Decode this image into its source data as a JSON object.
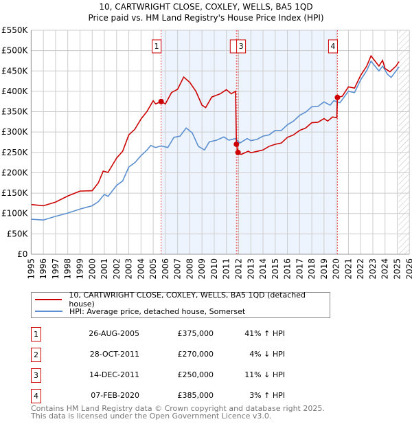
{
  "chart_data": {
    "type": "line",
    "title": "10, CARTWRIGHT CLOSE, COXLEY, WELLS, BA5 1QD",
    "subtitle": "Price paid vs. HM Land Registry's House Price Index (HPI)",
    "xlim": [
      1995,
      2026
    ],
    "ylim": [
      0,
      550000
    ],
    "x_ticks": [
      "1995",
      "1996",
      "1997",
      "1998",
      "1999",
      "2000",
      "2001",
      "2002",
      "2003",
      "2004",
      "2005",
      "2006",
      "2007",
      "2008",
      "2009",
      "2010",
      "2011",
      "2012",
      "2013",
      "2014",
      "2015",
      "2016",
      "2017",
      "2018",
      "2019",
      "2020",
      "2021",
      "2022",
      "2023",
      "2024",
      "2025",
      "2026"
    ],
    "y_ticks": [
      {
        "v": 0,
        "label": "£0"
      },
      {
        "v": 50000,
        "label": "£50K"
      },
      {
        "v": 100000,
        "label": "£100K"
      },
      {
        "v": 150000,
        "label": "£150K"
      },
      {
        "v": 200000,
        "label": "£200K"
      },
      {
        "v": 250000,
        "label": "£250K"
      },
      {
        "v": 300000,
        "label": "£300K"
      },
      {
        "v": 350000,
        "label": "£350K"
      },
      {
        "v": 400000,
        "label": "£400K"
      },
      {
        "v": 450000,
        "label": "£450K"
      },
      {
        "v": 500000,
        "label": "£500K"
      },
      {
        "v": 550000,
        "label": "£550K"
      }
    ],
    "grid": true,
    "shaded_range": [
      2005.65,
      2020.1
    ],
    "forecast_hatch_from": 2025.1,
    "series": [
      {
        "name": "10, CARTWRIGHT CLOSE, COXLEY, WELLS, BA5 1QD (detached house)",
        "color": "#cc0000",
        "points": [
          [
            1995,
            122
          ],
          [
            1996,
            119
          ],
          [
            1997,
            128
          ],
          [
            1998,
            143
          ],
          [
            1999,
            155
          ],
          [
            2000,
            156
          ],
          [
            2000.5,
            175
          ],
          [
            2000.9,
            204
          ],
          [
            2001.3,
            201
          ],
          [
            2002,
            236
          ],
          [
            2002.5,
            253
          ],
          [
            2003,
            293
          ],
          [
            2003.5,
            307
          ],
          [
            2004,
            332
          ],
          [
            2004.5,
            351
          ],
          [
            2005,
            377
          ],
          [
            2005.2,
            369
          ],
          [
            2005.65,
            375
          ],
          [
            2006,
            369
          ],
          [
            2006.5,
            397
          ],
          [
            2007,
            405
          ],
          [
            2007.5,
            435
          ],
          [
            2008,
            422
          ],
          [
            2008.5,
            400
          ],
          [
            2009,
            366
          ],
          [
            2009.3,
            360
          ],
          [
            2009.8,
            386
          ],
          [
            2010.5,
            394
          ],
          [
            2011,
            404
          ],
          [
            2011.4,
            394
          ],
          [
            2011.75,
            400
          ],
          [
            2011.82,
            270
          ],
          [
            2011.95,
            250
          ],
          [
            2012.2,
            245
          ],
          [
            2012.8,
            253
          ],
          [
            2013,
            249
          ],
          [
            2014,
            256
          ],
          [
            2014.5,
            265
          ],
          [
            2015,
            270
          ],
          [
            2015.5,
            273
          ],
          [
            2016,
            287
          ],
          [
            2016.5,
            293
          ],
          [
            2017,
            304
          ],
          [
            2017.5,
            310
          ],
          [
            2018,
            323
          ],
          [
            2018.5,
            324
          ],
          [
            2019,
            333
          ],
          [
            2019.3,
            327
          ],
          [
            2019.7,
            337
          ],
          [
            2020.05,
            335
          ],
          [
            2020.1,
            385
          ],
          [
            2020.5,
            388
          ],
          [
            2021,
            411
          ],
          [
            2021.5,
            408
          ],
          [
            2022,
            439
          ],
          [
            2022.5,
            462
          ],
          [
            2022.85,
            487
          ],
          [
            2023.5,
            462
          ],
          [
            2023.8,
            476
          ],
          [
            2024,
            456
          ],
          [
            2024.4,
            448
          ],
          [
            2024.9,
            462
          ],
          [
            2025.15,
            473
          ]
        ]
      },
      {
        "name": "HPI: Average price, detached house, Somerset",
        "color": "#5b8fd0",
        "points": [
          [
            1995,
            86
          ],
          [
            1996,
            84
          ],
          [
            1997,
            93
          ],
          [
            1998,
            101
          ],
          [
            1999,
            111
          ],
          [
            2000,
            119
          ],
          [
            2000.5,
            129
          ],
          [
            2001,
            147
          ],
          [
            2001.3,
            142
          ],
          [
            2002,
            169
          ],
          [
            2002.5,
            180
          ],
          [
            2003,
            214
          ],
          [
            2003.5,
            225
          ],
          [
            2004,
            242
          ],
          [
            2004.5,
            256
          ],
          [
            2004.8,
            267
          ],
          [
            2005.2,
            262
          ],
          [
            2005.65,
            266
          ],
          [
            2006.2,
            262
          ],
          [
            2006.7,
            287
          ],
          [
            2007.2,
            290
          ],
          [
            2007.7,
            310
          ],
          [
            2008.2,
            298
          ],
          [
            2008.7,
            265
          ],
          [
            2009.2,
            256
          ],
          [
            2009.6,
            276
          ],
          [
            2010.2,
            280
          ],
          [
            2010.8,
            288
          ],
          [
            2011.2,
            280
          ],
          [
            2011.75,
            284
          ],
          [
            2012.1,
            273
          ],
          [
            2012.7,
            284
          ],
          [
            2013,
            279
          ],
          [
            2013.5,
            282
          ],
          [
            2014,
            290
          ],
          [
            2014.5,
            293
          ],
          [
            2015,
            304
          ],
          [
            2015.5,
            304
          ],
          [
            2016,
            318
          ],
          [
            2016.5,
            327
          ],
          [
            2017,
            341
          ],
          [
            2017.5,
            349
          ],
          [
            2018,
            362
          ],
          [
            2018.5,
            363
          ],
          [
            2019,
            374
          ],
          [
            2019.5,
            366
          ],
          [
            2019.8,
            377
          ],
          [
            2020.3,
            372
          ],
          [
            2021,
            400
          ],
          [
            2021.5,
            397
          ],
          [
            2022,
            428
          ],
          [
            2022.5,
            451
          ],
          [
            2022.85,
            474
          ],
          [
            2023.5,
            450
          ],
          [
            2023.8,
            462
          ],
          [
            2024.2,
            442
          ],
          [
            2024.5,
            434
          ],
          [
            2025.15,
            460
          ]
        ]
      }
    ],
    "sales": [
      {
        "n": "1",
        "x": 2005.65,
        "value": 375,
        "date": "26-AUG-2005",
        "price": "£375,000",
        "hpi": "41% ↑ HPI"
      },
      {
        "n": "2",
        "x": 2011.82,
        "value": 270,
        "date": "28-OCT-2011",
        "price": "£270,000",
        "hpi": "4% ↓ HPI"
      },
      {
        "n": "3",
        "x": 2011.95,
        "value": 250,
        "date": "14-DEC-2011",
        "price": "£250,000",
        "hpi": "11% ↓ HPI"
      },
      {
        "n": "4",
        "x": 2020.1,
        "value": 385,
        "date": "07-FEB-2020",
        "price": "£385,000",
        "hpi": "3% ↑ HPI"
      }
    ]
  },
  "legend": {
    "property": "10, CARTWRIGHT CLOSE, COXLEY, WELLS, BA5 1QD (detached house)",
    "hpi": "HPI: Average price, detached house, Somerset"
  },
  "footer": {
    "line1": "Contains HM Land Registry data © Crown copyright and database right 2025.",
    "line2": "This data is licensed under the Open Government Licence v3.0."
  }
}
